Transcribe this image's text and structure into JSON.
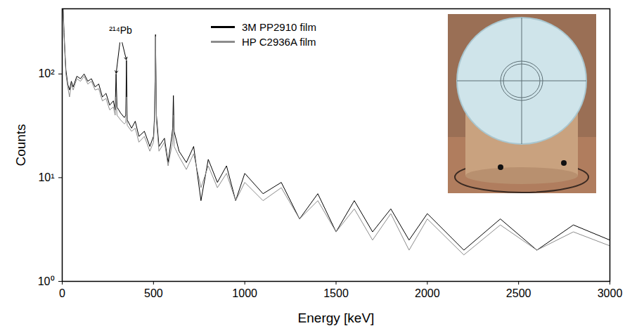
{
  "chart_data": {
    "type": "line",
    "x_label": "Energy [keV]",
    "y_label": "Counts",
    "log": "y",
    "legend": "top",
    "xlim": [
      0,
      3000
    ],
    "xticks": [
      0,
      500,
      1000,
      1500,
      2000,
      2500,
      3000
    ],
    "ylim": [
      1,
      425
    ],
    "yticks": [
      {
        "value": 1,
        "label": "10⁰"
      },
      {
        "value": 10,
        "label": "10¹"
      },
      {
        "value": 100,
        "label": "10²"
      }
    ],
    "x": [
      5,
      10,
      15,
      20,
      30,
      40,
      50,
      60,
      80,
      100,
      120,
      140,
      160,
      180,
      200,
      220,
      240,
      260,
      280,
      290,
      295,
      300,
      320,
      340,
      348,
      352,
      356,
      380,
      400,
      420,
      450,
      480,
      500,
      506,
      511,
      516,
      530,
      560,
      580,
      600,
      605,
      609,
      613,
      640,
      680,
      720,
      760,
      800,
      850,
      900,
      950,
      1000,
      1100,
      1200,
      1300,
      1400,
      1500,
      1600,
      1700,
      1800,
      1900,
      2000,
      2200,
      2400,
      2600,
      2800,
      3000
    ],
    "series": [
      {
        "name": "3M PP2910 film",
        "color": "#000000",
        "values": [
          420,
          250,
          160,
          110,
          80,
          70,
          85,
          75,
          95,
          90,
          100,
          85,
          90,
          75,
          80,
          60,
          65,
          50,
          55,
          45,
          100,
          48,
          42,
          38,
          40,
          135,
          36,
          30,
          35,
          25,
          28,
          20,
          25,
          40,
          240,
          40,
          20,
          24,
          14,
          25,
          30,
          62,
          28,
          18,
          14,
          20,
          6,
          15,
          9,
          13,
          6,
          11,
          7,
          9,
          4,
          7,
          3,
          6,
          3,
          5,
          2.5,
          4.5,
          2,
          4,
          2,
          3.5,
          2.5
        ]
      },
      {
        "name": "HP C2936A film",
        "color": "#8c8c8c",
        "values": [
          380,
          230,
          150,
          100,
          75,
          60,
          80,
          70,
          90,
          85,
          95,
          80,
          85,
          70,
          72,
          55,
          58,
          45,
          48,
          40,
          60,
          40,
          36,
          33,
          34,
          60,
          32,
          28,
          30,
          22,
          25,
          18,
          22,
          35,
          230,
          35,
          18,
          22,
          13,
          20,
          22,
          40,
          20,
          16,
          12,
          17,
          8,
          13,
          8,
          11,
          6,
          9,
          6,
          8,
          4,
          6,
          3,
          5,
          2.5,
          4.5,
          2,
          4,
          1.8,
          3.5,
          2,
          3,
          2.2
        ]
      }
    ],
    "annotations": [
      {
        "text": "²¹⁴Pb",
        "x": 320,
        "y": 230,
        "arrows_to": [
          [
            295,
            100
          ],
          [
            352,
            135
          ]
        ]
      }
    ]
  }
}
